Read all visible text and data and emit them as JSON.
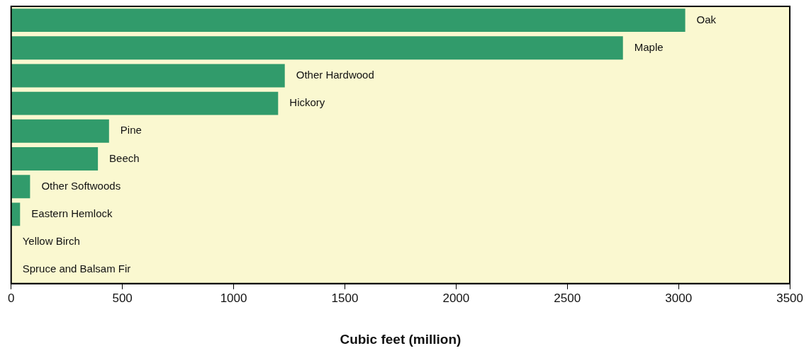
{
  "chart_data": {
    "type": "bar",
    "orientation": "horizontal",
    "xlabel": "Cubic feet (million)",
    "categories": [
      "Oak",
      "Maple",
      "Other Hardwood",
      "Hickory",
      "Pine",
      "Beech",
      "Other Softwoods",
      "Eastern Hemlock",
      "Yellow Birch",
      "Spruce and Balsam Fir"
    ],
    "values": [
      3030,
      2750,
      1230,
      1200,
      440,
      390,
      85,
      40,
      0,
      0
    ],
    "color": "#319b6b",
    "xlim": [
      0,
      3500
    ],
    "xticks": [
      0,
      500,
      1000,
      1500,
      2000,
      2500,
      3000,
      3500
    ],
    "grid": false,
    "tick_labels": "x"
  }
}
